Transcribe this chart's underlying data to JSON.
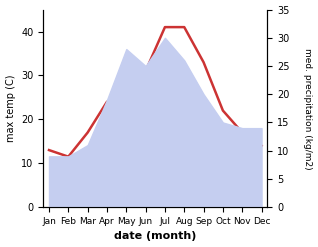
{
  "months": [
    "Jan",
    "Feb",
    "Mar",
    "Apr",
    "May",
    "Jun",
    "Jul",
    "Aug",
    "Sep",
    "Oct",
    "Nov",
    "Dec"
  ],
  "max_temp": [
    13,
    11.5,
    17,
    24,
    24,
    31,
    41,
    41,
    33,
    22,
    17,
    14
  ],
  "precipitation": [
    9,
    9,
    11,
    19,
    28,
    25,
    30,
    26,
    20,
    15,
    14,
    14
  ],
  "temp_color": "#cc3333",
  "precip_fill_color": "#c5cef0",
  "temp_ylim": [
    0,
    45
  ],
  "precip_ylim": [
    0,
    35
  ],
  "temp_yticks": [
    0,
    10,
    20,
    30,
    40
  ],
  "precip_yticks": [
    0,
    5,
    10,
    15,
    20,
    25,
    30,
    35
  ],
  "ylabel_left": "max temp (C)",
  "ylabel_right": "med. precipitation (kg/m2)",
  "xlabel": "date (month)",
  "bg_color": "#ffffff"
}
